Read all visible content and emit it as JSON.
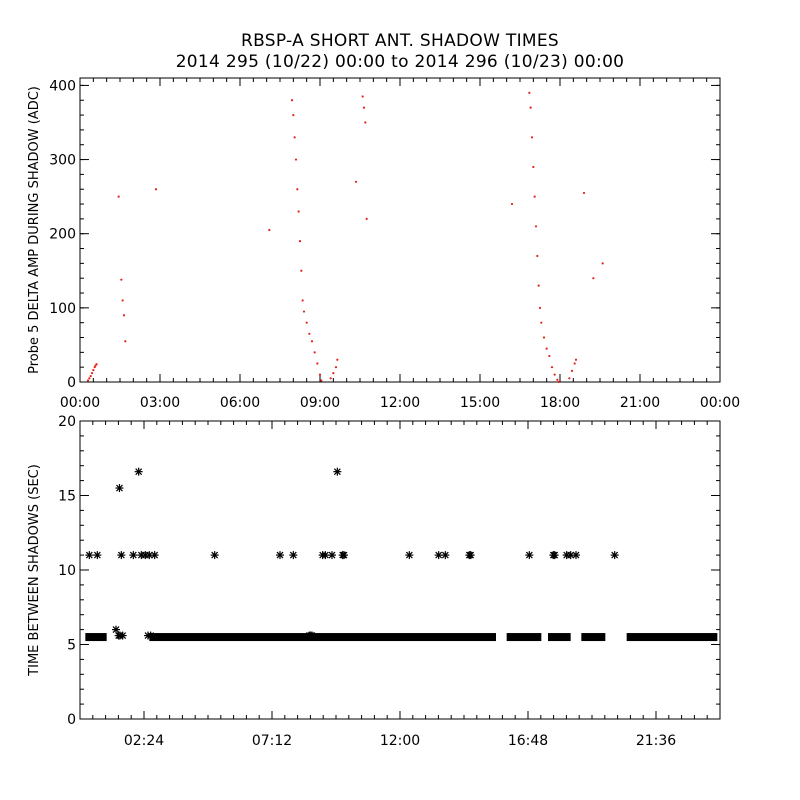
{
  "title": {
    "line1": "RBSP-A SHORT ANT. SHADOW TIMES",
    "line2": "2014 295 (10/22) 00:00 to 2014 296 (10/23) 00:00"
  },
  "colors": {
    "series_top": "#e2231a",
    "series_bottom": "#000000",
    "axes": "#000000"
  },
  "chart_data": [
    {
      "type": "scatter",
      "ylabel": "Probe 5 DELTA AMP DURING SHADOW (ADC)",
      "xlabel": "",
      "xlim_hours": [
        0,
        24
      ],
      "ylim": [
        0,
        410
      ],
      "x_tick_labels": [
        "00:00",
        "03:00",
        "06:00",
        "09:00",
        "12:00",
        "15:00",
        "18:00",
        "21:00",
        "00:00"
      ],
      "y_tick_labels": [
        "0",
        "100",
        "200",
        "300",
        "400"
      ],
      "marker": "dot",
      "series": [
        {
          "color": "#e2231a",
          "x_hours": [
            0.3,
            0.35,
            0.4,
            0.45,
            0.5,
            0.55,
            0.58,
            0.62,
            1.45,
            1.55,
            1.6,
            1.65,
            1.7,
            2.85,
            7.1,
            7.95,
            8.0,
            8.05,
            8.1,
            8.15,
            8.2,
            8.25,
            8.3,
            8.35,
            8.4,
            8.5,
            8.6,
            8.7,
            8.8,
            8.9,
            9.0,
            9.05,
            9.4,
            9.5,
            9.6,
            9.65,
            10.35,
            10.6,
            10.65,
            10.7,
            10.75,
            16.2,
            16.85,
            16.9,
            16.95,
            17.0,
            17.05,
            17.1,
            17.15,
            17.2,
            17.25,
            17.3,
            17.4,
            17.5,
            17.6,
            17.7,
            17.8,
            17.9,
            17.95,
            18.35,
            18.45,
            18.55,
            18.6,
            18.9,
            19.25,
            19.6
          ],
          "y": [
            2,
            5,
            8,
            12,
            16,
            20,
            22,
            24,
            250,
            138,
            110,
            90,
            55,
            260,
            205,
            380,
            360,
            330,
            300,
            260,
            230,
            190,
            150,
            110,
            95,
            80,
            65,
            55,
            40,
            25,
            10,
            2,
            5,
            12,
            20,
            30,
            270,
            385,
            370,
            350,
            220,
            240,
            390,
            370,
            330,
            290,
            250,
            210,
            170,
            130,
            100,
            80,
            60,
            45,
            35,
            20,
            10,
            3,
            0,
            5,
            15,
            25,
            30,
            255,
            140,
            160
          ]
        }
      ]
    },
    {
      "type": "scatter",
      "ylabel": "TIME BETWEEN SHADOWS (SEC)",
      "xlabel": "",
      "xlim_hours": [
        0,
        24
      ],
      "ylim": [
        0,
        20
      ],
      "x_tick_labels": [
        "02:24",
        "07:12",
        "12:00",
        "16:48",
        "21:36"
      ],
      "y_tick_labels": [
        "0",
        "5",
        "10",
        "15",
        "20"
      ],
      "marker": "asterisk",
      "baseline": {
        "value": 5.5,
        "segments_hours": [
          [
            0.2,
            1.0
          ],
          [
            2.6,
            15.6
          ],
          [
            16.0,
            17.3
          ],
          [
            17.55,
            18.4
          ],
          [
            18.8,
            19.7
          ],
          [
            20.5,
            23.9
          ]
        ],
        "color": "#000000"
      },
      "series": [
        {
          "color": "#000000",
          "x_hours": [
            0.35,
            0.65,
            1.35,
            1.48,
            1.55,
            1.6,
            2.0,
            2.2,
            2.3,
            2.45,
            2.6,
            2.8,
            5.05,
            7.5,
            8.0,
            9.1,
            9.2,
            9.45,
            9.65,
            9.85,
            9.9,
            12.35,
            13.45,
            13.7,
            14.6,
            14.65,
            16.85,
            17.75,
            17.8,
            18.25,
            18.4,
            18.6,
            20.05,
            1.45,
            1.5,
            2.55,
            2.65,
            8.6,
            8.65,
            8.7
          ],
          "y": [
            11,
            11,
            6,
            15.5,
            11,
            5.6,
            11,
            16.6,
            11,
            11,
            11,
            11,
            11,
            11,
            11,
            11,
            11,
            11,
            16.6,
            11,
            11,
            11,
            11,
            11,
            11,
            11,
            11,
            11,
            11,
            11,
            11,
            11,
            11,
            5.6,
            5.6,
            5.6,
            5.6,
            5.6,
            5.6,
            5.6
          ]
        }
      ]
    }
  ]
}
